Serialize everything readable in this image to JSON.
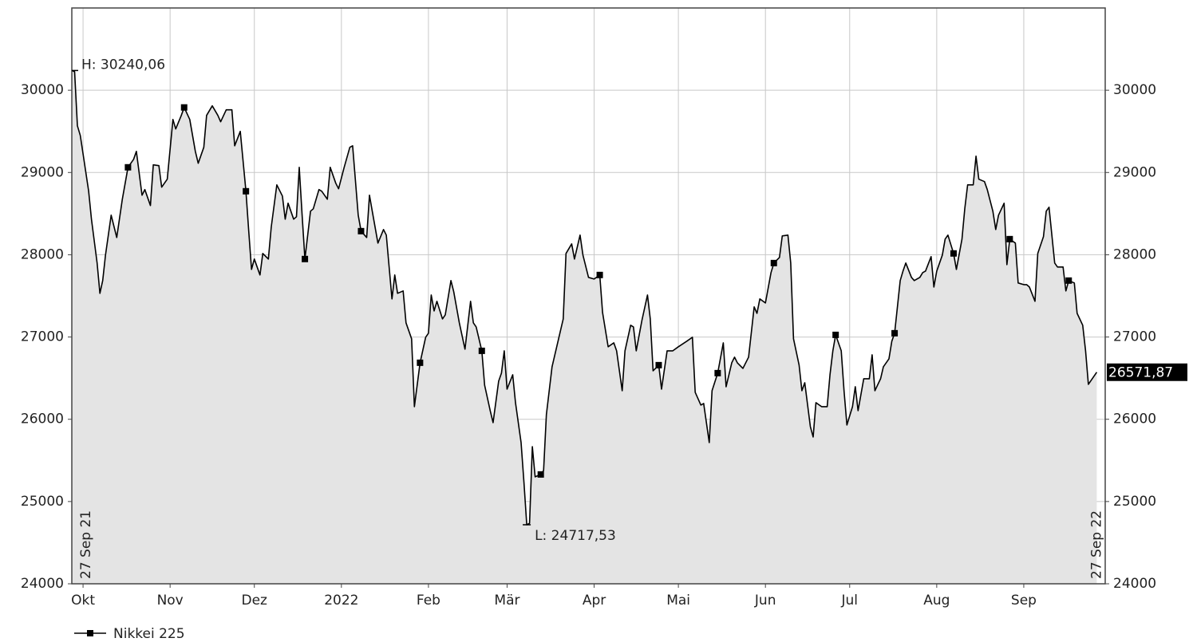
{
  "chart_data": {
    "type": "line",
    "area": true,
    "fill_color": "#e4e4e4",
    "grid": true,
    "legend_position": "bottom-left",
    "xlim": [
      "2021-09-27",
      "2022-09-30"
    ],
    "ylim": [
      24000,
      31000
    ],
    "y2lim": [
      24000,
      31000
    ],
    "yticks": [
      24000,
      25000,
      26000,
      27000,
      28000,
      29000,
      30000
    ],
    "y2ticks": [
      24000,
      25000,
      26000,
      27000,
      28000,
      29000,
      30000
    ],
    "xticks": [
      {
        "value": "2021-10-01",
        "label": "Okt"
      },
      {
        "value": "2021-11-01",
        "label": "Nov"
      },
      {
        "value": "2021-12-01",
        "label": "Dez"
      },
      {
        "value": "2022-01-01",
        "label": "2022"
      },
      {
        "value": "2022-02-01",
        "label": "Feb"
      },
      {
        "value": "2022-03-01",
        "label": "Mär"
      },
      {
        "value": "2022-04-01",
        "label": "Apr"
      },
      {
        "value": "2022-05-01",
        "label": "Mai"
      },
      {
        "value": "2022-06-01",
        "label": "Jun"
      },
      {
        "value": "2022-07-01",
        "label": "Jul"
      },
      {
        "value": "2022-08-01",
        "label": "Aug"
      },
      {
        "value": "2022-09-01",
        "label": "Sep"
      }
    ],
    "high_label": "H: 30240,06",
    "low_label": "L: 24717,53",
    "start_label": "27 Sep 21",
    "end_label": "27 Sep 22",
    "last_value_label": "26571,87",
    "x": [
      "2021-09-27",
      "2021-09-28",
      "2021-09-29",
      "2021-09-30",
      "2021-10-03",
      "2021-10-04",
      "2021-10-06",
      "2021-10-07",
      "2021-10-08",
      "2021-10-09",
      "2021-10-11",
      "2021-10-13",
      "2021-10-15",
      "2021-10-17",
      "2021-10-19",
      "2021-10-20",
      "2021-10-22",
      "2021-10-23",
      "2021-10-25",
      "2021-10-26",
      "2021-10-28",
      "2021-10-29",
      "2021-10-31",
      "2021-11-02",
      "2021-11-03",
      "2021-11-05",
      "2021-11-06",
      "2021-11-08",
      "2021-11-10",
      "2021-11-11",
      "2021-11-13",
      "2021-11-14",
      "2021-11-16",
      "2021-11-18",
      "2021-11-19",
      "2021-11-21",
      "2021-11-23",
      "2021-11-24",
      "2021-11-26",
      "2021-11-28",
      "2021-11-29",
      "2021-11-30",
      "2021-12-01",
      "2021-12-03",
      "2021-12-04",
      "2021-12-06",
      "2021-12-07",
      "2021-12-09",
      "2021-12-11",
      "2021-12-12",
      "2021-12-13",
      "2021-12-15",
      "2021-12-16",
      "2021-12-17",
      "2021-12-18",
      "2021-12-19",
      "2021-12-21",
      "2021-12-22",
      "2021-12-24",
      "2021-12-25",
      "2021-12-27",
      "2021-12-28",
      "2021-12-30",
      "2021-12-31",
      "2022-01-02",
      "2022-01-04",
      "2022-01-05",
      "2022-01-07",
      "2022-01-08",
      "2022-01-10",
      "2022-01-11",
      "2022-01-12",
      "2022-01-14",
      "2022-01-16",
      "2022-01-17",
      "2022-01-19",
      "2022-01-20",
      "2022-01-21",
      "2022-01-23",
      "2022-01-24",
      "2022-01-26",
      "2022-01-27",
      "2022-01-29",
      "2022-01-31",
      "2022-02-01",
      "2022-02-02",
      "2022-02-03",
      "2022-02-04",
      "2022-02-06",
      "2022-02-07",
      "2022-02-09",
      "2022-02-10",
      "2022-02-12",
      "2022-02-14",
      "2022-02-16",
      "2022-02-17",
      "2022-02-18",
      "2022-02-20",
      "2022-02-21",
      "2022-02-23",
      "2022-02-24",
      "2022-02-26",
      "2022-02-27",
      "2022-02-28",
      "2022-03-01",
      "2022-03-03",
      "2022-03-04",
      "2022-03-06",
      "2022-03-07",
      "2022-03-08",
      "2022-03-09",
      "2022-03-10",
      "2022-03-11",
      "2022-03-13",
      "2022-03-14",
      "2022-03-15",
      "2022-03-17",
      "2022-03-19",
      "2022-03-21",
      "2022-03-22",
      "2022-03-24",
      "2022-03-25",
      "2022-03-27",
      "2022-03-28",
      "2022-03-30",
      "2022-04-01",
      "2022-04-03",
      "2022-04-04",
      "2022-04-06",
      "2022-04-08",
      "2022-04-09",
      "2022-04-11",
      "2022-04-12",
      "2022-04-14",
      "2022-04-15",
      "2022-04-16",
      "2022-04-18",
      "2022-04-20",
      "2022-04-21",
      "2022-04-22",
      "2022-04-24",
      "2022-04-25",
      "2022-04-27",
      "2022-04-29",
      "2022-05-01",
      "2022-05-04",
      "2022-05-06",
      "2022-05-07",
      "2022-05-09",
      "2022-05-10",
      "2022-05-12",
      "2022-05-13",
      "2022-05-15",
      "2022-05-17",
      "2022-05-18",
      "2022-05-20",
      "2022-05-21",
      "2022-05-22",
      "2022-05-24",
      "2022-05-26",
      "2022-05-28",
      "2022-05-29",
      "2022-05-30",
      "2022-06-01",
      "2022-06-03",
      "2022-06-04",
      "2022-06-06",
      "2022-06-07",
      "2022-06-09",
      "2022-06-10",
      "2022-06-11",
      "2022-06-13",
      "2022-06-14",
      "2022-06-15",
      "2022-06-17",
      "2022-06-18",
      "2022-06-19",
      "2022-06-21",
      "2022-06-23",
      "2022-06-24",
      "2022-06-25",
      "2022-06-26",
      "2022-06-28",
      "2022-06-29",
      "2022-06-30",
      "2022-07-02",
      "2022-07-03",
      "2022-07-04",
      "2022-07-06",
      "2022-07-08",
      "2022-07-09",
      "2022-07-10",
      "2022-07-12",
      "2022-07-13",
      "2022-07-15",
      "2022-07-16",
      "2022-07-17",
      "2022-07-19",
      "2022-07-20",
      "2022-07-21",
      "2022-07-23",
      "2022-07-24",
      "2022-07-26",
      "2022-07-27",
      "2022-07-28",
      "2022-07-30",
      "2022-07-31",
      "2022-08-01",
      "2022-08-03",
      "2022-08-04",
      "2022-08-05",
      "2022-08-07",
      "2022-08-08",
      "2022-08-10",
      "2022-08-11",
      "2022-08-12",
      "2022-08-14",
      "2022-08-15",
      "2022-08-16",
      "2022-08-18",
      "2022-08-19",
      "2022-08-21",
      "2022-08-22",
      "2022-08-23",
      "2022-08-25",
      "2022-08-26",
      "2022-08-27",
      "2022-08-29",
      "2022-08-30",
      "2022-09-01",
      "2022-09-02",
      "2022-09-03",
      "2022-09-05",
      "2022-09-06",
      "2022-09-08",
      "2022-09-09",
      "2022-09-10",
      "2022-09-12",
      "2022-09-13",
      "2022-09-15",
      "2022-09-16",
      "2022-09-17",
      "2022-09-19",
      "2022-09-20",
      "2022-09-22",
      "2022-09-23",
      "2022-09-24",
      "2022-09-27"
    ],
    "series": [
      {
        "name": "Nikkei 225",
        "color": "#000000",
        "values": [
          30240.06,
          30225,
          29568,
          29451,
          28772,
          28433,
          27899,
          27531,
          27686,
          27996,
          28481,
          28210,
          28675,
          29063,
          29160,
          29257,
          28724,
          28792,
          28598,
          29093,
          29083,
          28821,
          28918,
          29645,
          29529,
          29694,
          29791,
          29645,
          29257,
          29112,
          29306,
          29694,
          29810,
          29694,
          29616,
          29762,
          29762,
          29325,
          29500,
          28772,
          28287,
          27822,
          27948,
          27754,
          28016,
          27948,
          28336,
          28850,
          28714,
          28433,
          28627,
          28433,
          28462,
          29063,
          28481,
          27948,
          28530,
          28559,
          28792,
          28772,
          28675,
          29063,
          28869,
          28802,
          29063,
          29306,
          29325,
          28481,
          28287,
          28210,
          28724,
          28530,
          28142,
          28307,
          28239,
          27463,
          27754,
          27531,
          27560,
          27172,
          26978,
          26153,
          26687,
          26997,
          27046,
          27511,
          27317,
          27434,
          27220,
          27269,
          27686,
          27550,
          27172,
          26852,
          27434,
          27172,
          27123,
          26832,
          26415,
          26105,
          25959,
          26464,
          26561,
          26832,
          26367,
          26541,
          26202,
          25717,
          25232,
          24717.53,
          24735,
          25668,
          25300,
          25329,
          25377,
          26056,
          26638,
          26929,
          27220,
          28016,
          28132,
          27948,
          28239,
          27996,
          27725,
          27705,
          27754,
          27298,
          26881,
          26929,
          26832,
          26347,
          26832,
          27143,
          27123,
          26832,
          27201,
          27511,
          27220,
          26590,
          26658,
          26367,
          26832,
          26832,
          26881,
          26949,
          26997,
          26328,
          26173,
          26192,
          25717,
          26347,
          26561,
          26929,
          26396,
          26687,
          26755,
          26687,
          26619,
          26755,
          27366,
          27288,
          27463,
          27414,
          27783,
          27899,
          27967,
          28229,
          28239,
          27899,
          26978,
          26658,
          26347,
          26444,
          25911,
          25785,
          26202,
          26153,
          26153,
          26541,
          26832,
          27026,
          26832,
          26347,
          25930,
          26153,
          26396,
          26105,
          26493,
          26493,
          26784,
          26347,
          26493,
          26638,
          26735,
          26949,
          27046,
          27686,
          27802,
          27899,
          27725,
          27686,
          27725,
          27783,
          27802,
          27977,
          27608,
          27802,
          27996,
          28190,
          28239,
          28016,
          27822,
          28190,
          28559,
          28850,
          28850,
          29199,
          28918,
          28889,
          28792,
          28530,
          28307,
          28481,
          28627,
          27880,
          28190,
          28142,
          27657,
          27637,
          27637,
          27608,
          27434,
          28016,
          28219,
          28530,
          28578,
          27899,
          27851,
          27851,
          27560,
          27686,
          27657,
          27288,
          27143,
          26832,
          26425,
          26571.87
        ]
      }
    ]
  }
}
